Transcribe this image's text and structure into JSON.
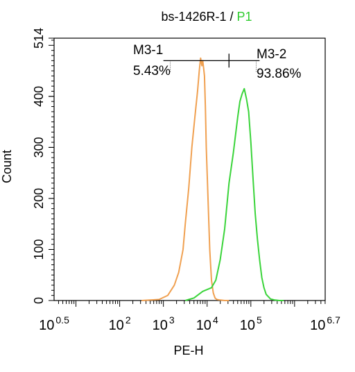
{
  "chart_data": {
    "type": "line",
    "title": {
      "sample": "bs-1426R-1",
      "separator": " / ",
      "gate": "P1",
      "gate_color": "#2ecc2e"
    },
    "xlabel": "PE-H",
    "ylabel": "Count",
    "x_scale": "log10",
    "xlim": [
      0.5,
      6.7
    ],
    "ylim": [
      0,
      514
    ],
    "x_ticks": [
      {
        "exp": 0.5,
        "base": "10",
        "sup": "0.5"
      },
      {
        "exp": 2,
        "base": "10",
        "sup": "2"
      },
      {
        "exp": 3,
        "base": "10",
        "sup": "3"
      },
      {
        "exp": 4,
        "base": "10",
        "sup": "4"
      },
      {
        "exp": 5,
        "base": "10",
        "sup": "5"
      },
      {
        "exp": 6.7,
        "base": "10",
        "sup": "6.7"
      }
    ],
    "y_ticks": [
      0,
      100,
      200,
      300,
      400,
      514
    ],
    "series": [
      {
        "color": "#f0a050",
        "x_log10": [
          2.5,
          2.9,
          3.1,
          3.25,
          3.35,
          3.45,
          3.5,
          3.58,
          3.65,
          3.72,
          3.78,
          3.82,
          3.85,
          3.88,
          3.9,
          3.92,
          3.94,
          3.96,
          3.98,
          4.02,
          4.06,
          4.1,
          4.14,
          4.18,
          4.22,
          4.3,
          4.4,
          4.5
        ],
        "y": [
          0,
          2,
          10,
          30,
          55,
          100,
          150,
          220,
          300,
          360,
          410,
          450,
          475,
          460,
          470,
          455,
          440,
          380,
          300,
          200,
          100,
          40,
          15,
          5,
          2,
          1,
          0,
          0
        ]
      },
      {
        "color": "#3ad43a",
        "x_log10": [
          3.5,
          3.7,
          3.9,
          4.1,
          4.2,
          4.3,
          4.4,
          4.5,
          4.6,
          4.7,
          4.75,
          4.8,
          4.85,
          4.9,
          4.95,
          5.0,
          5.05,
          5.1,
          5.15,
          5.2,
          5.25,
          5.3,
          5.35,
          5.45,
          5.55,
          5.65,
          5.75
        ],
        "y": [
          0,
          5,
          18,
          25,
          40,
          80,
          140,
          230,
          290,
          360,
          390,
          405,
          415,
          395,
          370,
          310,
          240,
          170,
          120,
          80,
          45,
          25,
          12,
          3,
          1,
          0,
          0
        ]
      }
    ],
    "markers": [
      {
        "name": "M3-1",
        "percent": "5.43%",
        "x_from_log10": 3.0,
        "x_to_log10": 4.5,
        "y": 470
      },
      {
        "name": "M3-2",
        "percent": "93.86%",
        "x_from_log10": 4.5,
        "x_to_log10": 5.2,
        "y": 470
      }
    ]
  }
}
